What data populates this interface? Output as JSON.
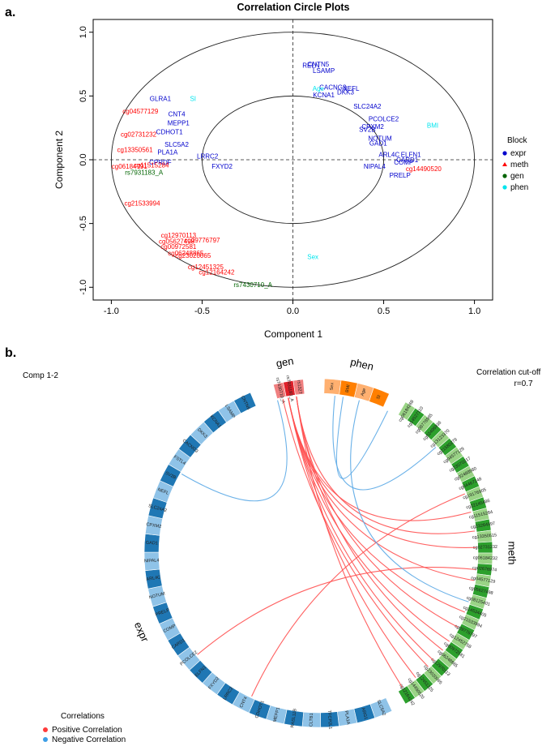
{
  "panel_a_letter": "a.",
  "panel_b_letter": "b.",
  "chart_data": [
    {
      "type": "scatter",
      "title": "Correlation Circle Plots",
      "xlabel": "Component  1",
      "ylabel": "Component  2",
      "xlim": [
        -1.1,
        1.1
      ],
      "ylim": [
        -1.1,
        1.1
      ],
      "xticks": [
        "-1.0",
        "-0.5",
        "0.0",
        "0.5",
        "1.0"
      ],
      "yticks": [
        "-1.0",
        "-0.5",
        "0.0",
        "0.5",
        "1.0"
      ],
      "circles_radius": [
        0.5,
        1.0
      ],
      "legend_title": "Block",
      "legend_position": "right",
      "legend": [
        {
          "name": "expr",
          "color": "#0000cc"
        },
        {
          "name": "meth",
          "color": "#ff0000"
        },
        {
          "name": "gen",
          "color": "#006400"
        },
        {
          "name": "phen",
          "color": "#00e5ee"
        }
      ],
      "points": [
        {
          "label": "RELN",
          "block": "expr",
          "x": 0.1,
          "y": 0.74
        },
        {
          "label": "CNTN5",
          "block": "expr",
          "x": 0.14,
          "y": 0.75
        },
        {
          "label": "LSAMP",
          "block": "expr",
          "x": 0.17,
          "y": 0.7
        },
        {
          "label": "CACNG3",
          "block": "expr",
          "x": 0.22,
          "y": 0.57
        },
        {
          "label": "NEFL",
          "block": "expr",
          "x": 0.32,
          "y": 0.56
        },
        {
          "label": "DKK3",
          "block": "expr",
          "x": 0.29,
          "y": 0.53
        },
        {
          "label": "KCNA1",
          "block": "expr",
          "x": 0.17,
          "y": 0.51
        },
        {
          "label": "SLC24A2",
          "block": "expr",
          "x": 0.41,
          "y": 0.42
        },
        {
          "label": "PCOLCE2",
          "block": "expr",
          "x": 0.5,
          "y": 0.32
        },
        {
          "label": "CPXM2",
          "block": "expr",
          "x": 0.44,
          "y": 0.26
        },
        {
          "label": "SV2B",
          "block": "expr",
          "x": 0.41,
          "y": 0.24
        },
        {
          "label": "NOTUM",
          "block": "expr",
          "x": 0.48,
          "y": 0.17
        },
        {
          "label": "GAD1",
          "block": "expr",
          "x": 0.47,
          "y": 0.13
        },
        {
          "label": "ARL4C",
          "block": "expr",
          "x": 0.53,
          "y": 0.04
        },
        {
          "label": "ELFN1",
          "block": "expr",
          "x": 0.65,
          "y": 0.04
        },
        {
          "label": "CARD1",
          "block": "expr",
          "x": 0.63,
          "y": 0.0
        },
        {
          "label": "COMP",
          "block": "expr",
          "x": 0.61,
          "y": -0.02
        },
        {
          "label": "NIPAL4",
          "block": "expr",
          "x": 0.45,
          "y": -0.05
        },
        {
          "label": "PRELP",
          "block": "expr",
          "x": 0.59,
          "y": -0.12
        },
        {
          "label": "LRRC2",
          "block": "expr",
          "x": -0.47,
          "y": 0.03
        },
        {
          "label": "FXYD2",
          "block": "expr",
          "x": -0.39,
          "y": -0.05
        },
        {
          "label": "GLRA1",
          "block": "expr",
          "x": -0.73,
          "y": 0.48
        },
        {
          "label": "CNT4",
          "block": "expr",
          "x": -0.64,
          "y": 0.36
        },
        {
          "label": "MEPP1",
          "block": "expr",
          "x": -0.63,
          "y": 0.29
        },
        {
          "label": "CDHOT1",
          "block": "expr",
          "x": -0.68,
          "y": 0.22
        },
        {
          "label": "PLA1A",
          "block": "expr",
          "x": -0.69,
          "y": 0.06
        },
        {
          "label": "CPRDF",
          "block": "expr",
          "x": -0.73,
          "y": -0.02
        },
        {
          "label": "SLC5A2",
          "block": "expr",
          "x": -0.64,
          "y": 0.12
        },
        {
          "label": "SI",
          "block": "phen",
          "x": -0.55,
          "y": 0.48
        },
        {
          "label": "Age",
          "block": "phen",
          "x": 0.14,
          "y": 0.56
        },
        {
          "label": "BMI",
          "block": "phen",
          "x": 0.77,
          "y": 0.27
        },
        {
          "label": "Sex",
          "block": "phen",
          "x": 0.11,
          "y": -0.76
        },
        {
          "label": "rs7931183_A",
          "block": "gen",
          "x": -0.82,
          "y": -0.1
        },
        {
          "label": "rs7430710_A",
          "block": "gen",
          "x": -0.22,
          "y": -0.98
        },
        {
          "label": "cg04577129",
          "block": "meth",
          "x": -0.84,
          "y": 0.38
        },
        {
          "label": "cg02731232",
          "block": "meth",
          "x": -0.85,
          "y": 0.2
        },
        {
          "label": "cg13350561",
          "block": "meth",
          "x": -0.87,
          "y": 0.08
        },
        {
          "label": "cg06184791",
          "block": "meth",
          "x": -0.9,
          "y": -0.05
        },
        {
          "label": "cg11515284",
          "block": "meth",
          "x": -0.78,
          "y": -0.04
        },
        {
          "label": "cg14490520",
          "block": "meth",
          "x": 0.72,
          "y": -0.07
        },
        {
          "label": "cg21533994",
          "block": "meth",
          "x": -0.83,
          "y": -0.34
        },
        {
          "label": "cg12970113",
          "block": "meth",
          "x": -0.63,
          "y": -0.59
        },
        {
          "label": "cg09776797",
          "block": "meth",
          "x": -0.5,
          "y": -0.63
        },
        {
          "label": "cg05627498",
          "block": "meth",
          "x": -0.64,
          "y": -0.64
        },
        {
          "label": "cg00972581",
          "block": "meth",
          "x": -0.63,
          "y": -0.68
        },
        {
          "label": "cg06248865",
          "block": "meth",
          "x": -0.59,
          "y": -0.73
        },
        {
          "label": "cg23020065",
          "block": "meth",
          "x": -0.55,
          "y": -0.75
        },
        {
          "label": "cg12451325",
          "block": "meth",
          "x": -0.48,
          "y": -0.84
        },
        {
          "label": "cg12164242",
          "block": "meth",
          "x": -0.42,
          "y": -0.88
        }
      ]
    },
    {
      "type": "chord",
      "subtitle": "Comp 1-2",
      "cutoff_label": "Correlation cut-off",
      "cutoff_value": "r=0.7",
      "legend_title": "Correlations",
      "legend": [
        {
          "name": "Positive Correlation",
          "color": "#ff3b3b"
        },
        {
          "name": "Negative Correlation",
          "color": "#3c9ee6"
        }
      ],
      "blocks": [
        {
          "name": "gen",
          "start": 345,
          "end": 355,
          "colors": [
            "#f08080",
            "#e0202a"
          ],
          "labels": [
            "rs7430710_A",
            "rs7931183_A",
            "rs1327"
          ]
        },
        {
          "name": "phen",
          "start": 2,
          "end": 24,
          "colors": [
            "#ffb070",
            "#ff7f00"
          ],
          "labels": [
            "Sex",
            "BMI",
            "Age",
            "SI"
          ]
        },
        {
          "name": "meth",
          "start": 30,
          "end": 150,
          "colors": [
            "#9ad486",
            "#2ca02c"
          ],
          "labels": [
            "cg06184268",
            "cg14527110",
            "cg08778985",
            "cg02496936",
            "cg13123370",
            "cg21580279",
            "cg04577129",
            "cg23070217",
            "cg02488980",
            "cg04467248",
            "cg19176905",
            "cg22145486",
            "cg11515284",
            "cg23264997",
            "cg13350515",
            "cg02731232",
            "cg06184232",
            "cg02676974",
            "cg04577129",
            "cg05627498",
            "cg08125401",
            "cg14534405",
            "cg21533994",
            "cg09776797",
            "cg12452758",
            "cg00972581",
            "cg06248865",
            "cg12970113",
            "cg23020065",
            "cg12451325",
            "cg14490520",
            "cg12164242"
          ]
        },
        {
          "name": "expr",
          "start": 155,
          "end": 337,
          "colors": [
            "#8fc3e8",
            "#1f77b4"
          ],
          "labels": [
            "SLC5A2",
            "ARG1",
            "PLA1A",
            "TFCP2L1",
            "CLTB1",
            "RASL11B",
            "MEPP1",
            "CDHOT1",
            "CNT4",
            "LRRC2",
            "FXYD2",
            "ELFN1",
            "PCOLCE2",
            "CARD1",
            "COMP",
            "PRELP",
            "NOTUM",
            "ARL4C",
            "NIPAL4",
            "GAD1",
            "CPXM2",
            "SLC24A2",
            "NEFL",
            "SV2B",
            "FSTL4",
            "CACNG3",
            "DKK3",
            "KCNA1",
            "LSAMP",
            "CNTN5"
          ]
        }
      ],
      "links": [
        {
          "sign": "positive",
          "from": 349,
          "to": 75
        },
        {
          "sign": "positive",
          "from": 349,
          "to": 88
        },
        {
          "sign": "positive",
          "from": 349,
          "to": 100
        },
        {
          "sign": "positive",
          "from": 349,
          "to": 112
        },
        {
          "sign": "positive",
          "from": 349,
          "to": 124
        },
        {
          "sign": "positive",
          "from": 349,
          "to": 133
        },
        {
          "sign": "positive",
          "from": 349,
          "to": 142
        },
        {
          "sign": "positive",
          "from": 352,
          "to": 82
        },
        {
          "sign": "positive",
          "from": 352,
          "to": 118
        },
        {
          "sign": "positive",
          "from": 352,
          "to": 128
        },
        {
          "sign": "positive",
          "from": 352,
          "to": 148
        },
        {
          "sign": "positive",
          "from": 347,
          "to": 136
        },
        {
          "sign": "positive",
          "from": 96,
          "to": 230
        },
        {
          "sign": "positive",
          "from": 68,
          "to": 205
        },
        {
          "sign": "negative",
          "from": 15,
          "to": 108
        },
        {
          "sign": "negative",
          "from": 6,
          "to": 48
        },
        {
          "sign": "negative",
          "from": 345,
          "to": 300
        },
        {
          "sign": "negative",
          "from": 9,
          "to": 26
        }
      ]
    }
  ]
}
